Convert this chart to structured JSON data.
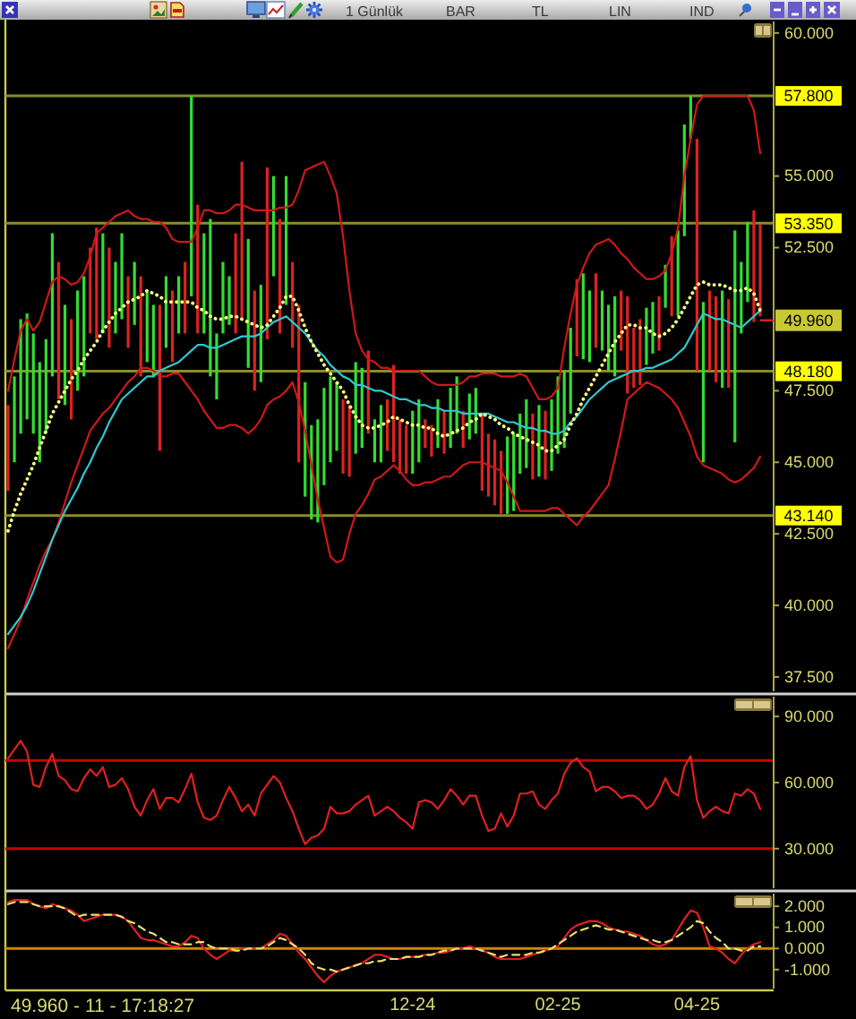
{
  "chart_data": [
    {
      "type": "bar",
      "tick_labels": "y",
      "ylim": [
        37,
        60.4
      ],
      "yticks": [
        {
          "value": 37.5,
          "label": "37.500"
        },
        {
          "value": 40,
          "label": "40.000"
        },
        {
          "value": 42.5,
          "label": "42.500"
        },
        {
          "value": 45,
          "label": "45.000"
        },
        {
          "value": 47.5,
          "label": "47.500"
        },
        {
          "value": 52.5,
          "label": "52.500"
        },
        {
          "value": 55,
          "label": "55.000"
        },
        {
          "value": 60,
          "label": "60.000"
        }
      ],
      "categories": [
        null,
        null,
        null,
        null,
        null,
        null,
        null,
        null,
        null,
        null,
        null,
        null,
        null,
        null,
        null,
        null,
        null,
        null,
        null,
        null,
        null,
        null,
        null,
        null,
        null,
        null,
        null,
        null,
        null,
        null,
        null,
        null,
        null,
        null,
        null,
        null,
        null,
        null,
        null,
        null,
        null,
        null,
        null,
        null,
        null,
        null,
        null,
        null,
        null,
        null,
        null,
        null,
        null,
        null,
        null,
        null,
        null,
        null,
        null,
        null,
        null,
        null,
        null,
        null,
        null,
        null,
        null,
        null,
        null,
        null,
        null,
        null,
        null,
        null,
        null,
        null,
        null,
        null,
        null,
        null,
        null,
        null,
        null,
        null,
        null,
        null,
        null,
        null,
        null,
        null,
        null,
        null,
        null,
        null,
        null,
        null,
        null,
        null,
        null,
        null,
        null,
        null,
        null,
        null,
        null,
        null,
        null,
        null,
        null,
        null,
        null,
        null,
        null,
        null,
        null,
        null,
        null,
        null,
        null,
        null
      ],
      "series": [
        {
          "base": [
            44.0,
            45.0,
            46.0,
            46.5,
            46.0,
            45.0,
            46.0,
            48.0,
            47.2,
            47.0,
            46.5,
            47.5,
            48.0,
            49.5,
            49.3,
            49.5,
            49.0,
            49.5,
            50.0,
            49.0,
            49.8,
            48.0,
            48.5,
            48.0,
            45.4,
            49.0,
            48.5,
            49.5,
            49.5,
            50.8,
            49.5,
            49.5,
            48.0,
            47.2,
            49.5,
            49.8,
            49.5,
            50.0,
            48.3,
            47.5,
            47.8,
            49.3,
            51.5,
            49.5,
            50.5,
            49.0,
            45.0,
            43.8,
            43.0,
            42.9,
            44.2,
            45.0,
            45.4,
            44.6,
            44.5,
            45.3,
            45.5,
            46.0,
            45.0,
            45.0,
            45.4,
            45.0,
            44.6,
            44.6,
            44.6,
            45.0,
            45.5,
            45.2,
            45.5,
            45.3,
            45.5,
            46.0,
            45.5,
            45.8,
            46.0,
            44.0,
            43.8,
            43.5,
            43.2,
            43.2,
            43.3,
            44.6,
            44.8,
            44.4,
            44.5,
            44.4,
            44.7,
            45.3,
            45.5,
            46.7,
            48.7,
            48.6,
            48.5,
            49.0,
            48.9,
            48.2,
            48.0,
            48.9,
            47.4,
            47.6,
            47.7,
            48.4,
            48.8,
            48.9,
            50.4,
            50.1,
            50.1,
            52.9,
            56.3,
            48.2,
            45.0,
            48.2,
            47.8,
            47.6,
            47.6,
            45.7,
            49.5,
            50.6,
            49.9,
            50.1
          ],
          "values": [
            3.0,
            3.0,
            4.0,
            3.7,
            3.5,
            3.5,
            3.3,
            5.0,
            4.8,
            3.5,
            3.5,
            3.5,
            3.5,
            3.0,
            3.9,
            3.5,
            3.5,
            2.5,
            3.0,
            2.5,
            2.2,
            3.5,
            2.5,
            2.5,
            5.1,
            2.5,
            2.5,
            2.0,
            2.5,
            7.0,
            4.5,
            3.5,
            5.5,
            2.3,
            2.5,
            1.7,
            3.5,
            5.5,
            4.5,
            3.5,
            3.4,
            6.0,
            3.5,
            4.0,
            4.5,
            3.0,
            5.5,
            4.0,
            3.3,
            3.6,
            3.4,
            3.0,
            2.4,
            2.6,
            2.5,
            3.2,
            2.8,
            2.9,
            1.5,
            2.0,
            1.8,
            3.4,
            1.9,
            1.7,
            2.2,
            2.2,
            1.0,
            1.1,
            1.7,
            1.5,
            2.1,
            2.0,
            1.3,
            1.6,
            1.6,
            2.7,
            2.2,
            2.3,
            2.2,
            2.7,
            2.7,
            2.1,
            2.4,
            2.3,
            2.5,
            2.4,
            2.5,
            2.7,
            2.7,
            3.0,
            2.7,
            3.0,
            2.5,
            2.6,
            2.1,
            2.3,
            2.8,
            2.1,
            3.4,
            2.1,
            2.3,
            2.0,
            1.8,
            1.9,
            1.5,
            2.8,
            3.0,
            3.9,
            1.5,
            8.1,
            5.6,
            2.8,
            3.0,
            3.4,
            3.1,
            7.4,
            2.5,
            2.8,
            3.9,
            3.2
          ],
          "colors": [
            "#dd2222",
            "#33dd33",
            "#33dd33",
            "#33dd33",
            "#33dd33",
            "#33dd33",
            "#33dd33",
            "#33dd33",
            "#dd2222",
            "#33dd33",
            "#dd2222",
            "#33dd33",
            "#33dd33",
            "#dd2222",
            "#dd2222",
            "#33dd33",
            "#dd2222",
            "#33dd33",
            "#33dd33",
            "#dd2222",
            "#33dd33",
            "#dd2222",
            "#33dd33",
            "#33dd33",
            "#dd2222",
            "#33dd33",
            "#dd2222",
            "#33dd33",
            "#dd2222",
            "#33dd33",
            "#dd2222",
            "#33dd33",
            "#33dd33",
            "#33dd33",
            "#33dd33",
            "#33dd33",
            "#dd2222",
            "#dd2222",
            "#33dd33",
            "#dd2222",
            "#33dd33",
            "#dd2222",
            "#33dd33",
            "#dd2222",
            "#33dd33",
            "#dd2222",
            "#dd2222",
            "#33dd33",
            "#33dd33",
            "#33dd33",
            "#33dd33",
            "#33dd33",
            "#33dd33",
            "#dd2222",
            "#dd2222",
            "#33dd33",
            "#33dd33",
            "#dd2222",
            "#33dd33",
            "#33dd33",
            "#dd2222",
            "#dd2222",
            "#dd2222",
            "#dd2222",
            "#33dd33",
            "#33dd33",
            "#dd2222",
            "#dd2222",
            "#33dd33",
            "#dd2222",
            "#33dd33",
            "#33dd33",
            "#dd2222",
            "#33dd33",
            "#33dd33",
            "#dd2222",
            "#dd2222",
            "#dd2222",
            "#dd2222",
            "#33dd33",
            "#33dd33",
            "#33dd33",
            "#33dd33",
            "#dd2222",
            "#33dd33",
            "#dd2222",
            "#33dd33",
            "#33dd33",
            "#33dd33",
            "#33dd33",
            "#dd2222",
            "#33dd33",
            "#33dd33",
            "#dd2222",
            "#33dd33",
            "#33dd33",
            "#33dd33",
            "#dd2222",
            "#dd2222",
            "#dd2222",
            "#dd2222",
            "#33dd33",
            "#33dd33",
            "#dd2222",
            "#33dd33",
            "#dd2222",
            "#33dd33",
            "#33dd33",
            "#33dd33",
            "#dd2222",
            "#33dd33",
            "#dd2222",
            "#dd2222",
            "#33dd33",
            "#dd2222",
            "#33dd33",
            "#33dd33",
            "#33dd33",
            "#dd2222",
            "#dd2222"
          ]
        },
        {
          "type": "line",
          "color": "#d01818",
          "values": [
            47.5,
            48.6,
            49.6,
            50.0,
            49.6,
            49.9,
            50.6,
            51.3,
            51.5,
            51.4,
            51.2,
            51.3,
            51.6,
            52.2,
            53.0,
            53.2,
            53.4,
            53.6,
            53.7,
            53.8,
            53.6,
            53.5,
            53.5,
            53.4,
            53.4,
            53.2,
            52.8,
            52.7,
            52.7,
            52.7,
            53.2,
            53.8,
            53.8,
            53.7,
            53.7,
            53.8,
            54.0,
            54.0,
            53.9,
            53.8,
            53.8,
            53.8,
            53.8,
            53.9,
            53.9,
            54.0,
            54.5,
            55.2,
            55.3,
            55.4,
            55.5,
            55.0,
            54.4,
            52.9,
            51.0,
            49.5,
            48.9,
            48.6,
            48.5,
            48.3,
            48.3,
            48.2,
            48.2,
            48.2,
            48.2,
            48.2,
            48.0,
            47.8,
            47.7,
            47.7,
            47.7,
            47.7,
            47.8,
            48.0,
            48.0,
            48.1,
            48.1,
            48.1,
            48.0,
            48.0,
            48.0,
            48.1,
            48.0,
            47.6,
            47.2,
            47.2,
            47.3,
            47.6,
            49.0,
            50.2,
            51.2,
            51.8,
            52.3,
            52.6,
            52.7,
            52.8,
            52.6,
            52.3,
            52.1,
            51.8,
            51.6,
            51.4,
            51.4,
            51.5,
            51.7,
            52.3,
            53.2,
            55.0,
            56.3,
            57.5,
            57.8,
            57.8,
            57.8,
            57.8,
            57.8,
            57.8,
            57.8,
            57.8,
            57.3,
            55.8
          ]
        },
        {
          "type": "line",
          "color": "#d01818",
          "values": [
            38.5,
            39.0,
            39.5,
            40.2,
            40.8,
            41.4,
            41.9,
            42.3,
            42.9,
            43.6,
            44.3,
            44.9,
            45.5,
            46.1,
            46.4,
            46.7,
            46.9,
            47.2,
            47.5,
            47.8,
            48.0,
            48.3,
            48.3,
            48.2,
            48.0,
            48.0,
            48.1,
            48.1,
            47.8,
            47.5,
            47.2,
            46.8,
            46.5,
            46.2,
            46.2,
            46.3,
            46.3,
            46.2,
            46.0,
            46.2,
            46.5,
            47.0,
            47.2,
            47.3,
            47.5,
            47.8,
            47.1,
            46.1,
            44.9,
            43.7,
            42.7,
            41.7,
            41.5,
            41.6,
            42.5,
            43.2,
            43.5,
            43.9,
            44.4,
            44.5,
            44.7,
            44.9,
            44.7,
            44.4,
            44.2,
            44.2,
            44.3,
            44.3,
            44.4,
            44.5,
            44.5,
            44.7,
            44.9,
            45.0,
            45.0,
            45.0,
            44.9,
            44.8,
            44.7,
            44.3,
            43.8,
            43.3,
            43.3,
            43.3,
            43.3,
            43.3,
            43.4,
            43.4,
            43.2,
            43.0,
            42.8,
            43.1,
            43.3,
            43.6,
            43.9,
            44.2,
            45.1,
            46.1,
            47.2,
            47.4,
            47.6,
            47.8,
            47.7,
            47.6,
            47.4,
            47.2,
            46.9,
            46.4,
            45.9,
            45.2,
            44.9,
            44.8,
            44.7,
            44.6,
            44.4,
            44.3,
            44.4,
            44.6,
            44.8,
            45.2
          ]
        },
        {
          "type": "line",
          "color": "#30c8d0",
          "values": [
            39.0,
            39.3,
            39.6,
            40.0,
            40.5,
            41.1,
            41.7,
            42.3,
            42.8,
            43.3,
            43.7,
            44.1,
            44.6,
            45.0,
            45.5,
            45.9,
            46.4,
            46.8,
            47.2,
            47.4,
            47.6,
            47.8,
            48.0,
            48.0,
            48.2,
            48.3,
            48.4,
            48.5,
            48.7,
            48.9,
            49.1,
            49.1,
            49.0,
            49.0,
            49.1,
            49.2,
            49.3,
            49.4,
            49.4,
            49.4,
            49.5,
            49.7,
            49.9,
            50.0,
            50.1,
            49.9,
            49.7,
            49.5,
            49.2,
            48.9,
            48.7,
            48.4,
            48.2,
            48.0,
            47.9,
            47.7,
            47.7,
            47.6,
            47.5,
            47.5,
            47.4,
            47.3,
            47.2,
            47.2,
            47.1,
            47.0,
            47.0,
            46.9,
            46.9,
            46.8,
            46.8,
            46.8,
            46.7,
            46.7,
            46.7,
            46.7,
            46.7,
            46.6,
            46.5,
            46.4,
            46.4,
            46.3,
            46.2,
            46.2,
            46.1,
            46.1,
            46.0,
            46.0,
            46.1,
            46.4,
            46.6,
            46.9,
            47.2,
            47.4,
            47.6,
            47.8,
            47.9,
            48.0,
            48.1,
            48.2,
            48.2,
            48.3,
            48.3,
            48.4,
            48.5,
            48.6,
            48.8,
            49.0,
            49.4,
            49.8,
            50.2,
            50.1,
            50.0,
            50.0,
            49.9,
            49.8,
            49.7,
            49.9,
            50.1,
            50.3
          ]
        },
        {
          "type": "line",
          "color": "#ffff80",
          "line_style": "dotted",
          "values": [
            42.6,
            43.3,
            43.9,
            44.4,
            44.9,
            45.5,
            46.1,
            46.7,
            47.1,
            47.5,
            47.9,
            48.2,
            48.6,
            48.9,
            49.2,
            49.6,
            49.9,
            50.2,
            50.4,
            50.6,
            50.7,
            50.8,
            51.0,
            50.9,
            50.8,
            50.6,
            50.6,
            50.6,
            50.6,
            50.6,
            50.4,
            50.3,
            50.1,
            50.0,
            50.0,
            50.1,
            50.1,
            50.0,
            49.9,
            49.8,
            49.7,
            49.8,
            50.1,
            50.4,
            50.8,
            50.8,
            50.3,
            49.7,
            49.2,
            48.8,
            48.4,
            48.1,
            47.8,
            47.5,
            47.0,
            46.6,
            46.3,
            46.2,
            46.2,
            46.3,
            46.4,
            46.6,
            46.5,
            46.4,
            46.3,
            46.3,
            46.2,
            46.2,
            46.0,
            45.9,
            46.0,
            46.1,
            46.2,
            46.4,
            46.5,
            46.7,
            46.6,
            46.5,
            46.3,
            46.2,
            46.0,
            45.9,
            45.8,
            45.7,
            45.6,
            45.4,
            45.4,
            45.6,
            45.8,
            46.3,
            46.7,
            47.2,
            47.6,
            48.0,
            48.4,
            48.8,
            49.2,
            49.5,
            49.8,
            49.8,
            49.7,
            49.7,
            49.5,
            49.4,
            49.5,
            49.7,
            50.0,
            50.4,
            50.8,
            51.2,
            51.3,
            51.2,
            51.2,
            51.2,
            51.1,
            51.0,
            51.0,
            51.1,
            50.9,
            50.3
          ]
        }
      ],
      "ref_lines": [
        {
          "axis": "y",
          "value": 57.8,
          "label": "57.800",
          "color": "#8c8c28"
        },
        {
          "axis": "y",
          "value": 53.35,
          "label": "53.350",
          "color": "#8c8c28"
        },
        {
          "axis": "y",
          "value": 48.18,
          "label": "48.180",
          "color": "#8c8c28"
        },
        {
          "axis": "y",
          "value": 43.14,
          "label": "43.140",
          "color": "#8c8c28"
        }
      ],
      "annotations": [
        "1 Günlük",
        "BAR",
        "TL",
        "LIN",
        "IND",
        {
          "text": "49.960",
          "y": 49.96
        }
      ]
    },
    {
      "type": "line",
      "tick_labels": "y",
      "ylim": [
        12,
        99
      ],
      "yticks": [
        {
          "value": 30,
          "label": "30.000"
        },
        {
          "value": 60,
          "label": "60.000"
        },
        {
          "value": 90,
          "label": "90.000"
        }
      ],
      "categories": [
        null,
        null,
        null,
        null,
        null,
        null,
        null,
        null,
        null,
        null,
        null,
        null,
        null,
        null,
        null,
        null,
        null,
        null,
        null,
        null,
        null,
        null,
        null,
        null,
        null,
        null,
        null,
        null,
        null,
        null,
        null,
        null,
        null,
        null,
        null,
        null,
        null,
        null,
        null,
        null,
        null,
        null,
        null,
        null,
        null,
        null,
        null,
        null,
        null,
        null,
        null,
        null,
        null,
        null,
        null,
        null,
        null,
        null,
        null,
        null,
        null,
        null,
        null,
        null,
        null,
        null,
        null,
        null,
        null,
        null,
        null,
        null,
        null,
        null,
        null,
        null,
        null,
        null,
        null,
        null,
        null,
        null,
        null,
        null,
        null,
        null,
        null,
        null,
        null,
        null,
        null,
        null,
        null,
        null,
        null,
        null,
        null,
        null,
        null,
        null,
        null,
        null,
        null,
        null,
        null,
        null,
        null,
        null,
        null,
        null,
        null,
        null,
        null,
        null,
        null,
        null,
        null,
        null,
        null,
        null
      ],
      "series": [
        {
          "color": "#e02020",
          "values": [
            71,
            75,
            79,
            74,
            59,
            58,
            67,
            73,
            63,
            61,
            57,
            56,
            62,
            66,
            63,
            67,
            58,
            59,
            62,
            57,
            49,
            45,
            52,
            57,
            48,
            53,
            53,
            51,
            57,
            64,
            51,
            44,
            43,
            45,
            52,
            58,
            53,
            47,
            50,
            45,
            55,
            59,
            63,
            60,
            53,
            47,
            39,
            32,
            35,
            36,
            39,
            49,
            46,
            46,
            47,
            50,
            52,
            54,
            45,
            47,
            49,
            47,
            44,
            42,
            39,
            51,
            52,
            51,
            48,
            52,
            57,
            54,
            50,
            54,
            54,
            45,
            38,
            39,
            46,
            40,
            45,
            55,
            55,
            56,
            50,
            48,
            52,
            55,
            64,
            69,
            71,
            67,
            65,
            56,
            58,
            58,
            56,
            53,
            54,
            54,
            52,
            48,
            50,
            55,
            62,
            56,
            54,
            67,
            72,
            52,
            44,
            47,
            49,
            47,
            46,
            55,
            54,
            57,
            55,
            48
          ]
        }
      ],
      "ref_lines": [
        {
          "axis": "y",
          "value": 70,
          "color": "#cc0000"
        },
        {
          "axis": "y",
          "value": 30,
          "color": "#cc0000"
        }
      ]
    },
    {
      "type": "line",
      "ylim": [
        -1.9,
        2.6
      ],
      "yticks": [
        {
          "value": -1,
          "label": "-1.000"
        },
        {
          "value": 0,
          "label": "0.000"
        },
        {
          "value": 1,
          "label": "1.000"
        },
        {
          "value": 2,
          "label": "2.000"
        }
      ],
      "categories": [
        null,
        null,
        null,
        null,
        null,
        null,
        null,
        null,
        null,
        null,
        null,
        null,
        null,
        null,
        null,
        null,
        null,
        null,
        null,
        null,
        null,
        null,
        null,
        null,
        null,
        null,
        null,
        null,
        null,
        null,
        null,
        null,
        null,
        null,
        null,
        null,
        null,
        null,
        null,
        null,
        null,
        null,
        null,
        null,
        null,
        null,
        null,
        null,
        null,
        null,
        null,
        null,
        null,
        null,
        null,
        null,
        null,
        null,
        null,
        null,
        null,
        null,
        null,
        null,
        "12-24",
        null,
        null,
        null,
        null,
        null,
        null,
        null,
        null,
        null,
        null,
        null,
        null,
        null,
        null,
        null,
        null,
        null,
        null,
        null,
        null,
        null,
        null,
        "02-25",
        null,
        null,
        null,
        null,
        null,
        null,
        null,
        null,
        null,
        null,
        null,
        null,
        null,
        null,
        null,
        null,
        null,
        null,
        null,
        null,
        null,
        "04-25",
        null,
        null,
        null,
        null,
        null,
        null,
        null,
        null,
        null,
        null
      ],
      "series": [
        {
          "color": "#e02020",
          "values": [
            2.2,
            2.3,
            2.3,
            2.3,
            2.1,
            2.0,
            1.9,
            2.1,
            2.0,
            1.9,
            1.8,
            1.6,
            1.3,
            1.4,
            1.5,
            1.6,
            1.6,
            1.6,
            1.5,
            1.3,
            0.9,
            0.5,
            0.4,
            0.4,
            0.3,
            0.2,
            0.1,
            0.1,
            0.3,
            0.6,
            0.5,
            0.0,
            -0.3,
            -0.5,
            -0.3,
            -0.1,
            -0.1,
            0.0,
            0.0,
            0.0,
            0.0,
            0.2,
            0.4,
            0.7,
            0.6,
            0.2,
            -0.2,
            -0.5,
            -0.9,
            -1.3,
            -1.6,
            -1.3,
            -1.1,
            -1.0,
            -0.9,
            -0.8,
            -0.7,
            -0.5,
            -0.3,
            -0.3,
            -0.4,
            -0.5,
            -0.5,
            -0.4,
            -0.4,
            -0.4,
            -0.3,
            -0.3,
            -0.2,
            -0.2,
            -0.1,
            0.0,
            0.0,
            0.1,
            0.0,
            -0.1,
            -0.2,
            -0.4,
            -0.5,
            -0.5,
            -0.5,
            -0.5,
            -0.4,
            -0.3,
            -0.2,
            -0.1,
            0.0,
            0.1,
            0.5,
            0.9,
            1.1,
            1.2,
            1.3,
            1.3,
            1.2,
            1.0,
            0.9,
            0.8,
            0.8,
            0.7,
            0.6,
            0.4,
            0.2,
            0.1,
            0.2,
            0.4,
            0.9,
            1.4,
            1.8,
            1.7,
            1.0,
            0.1,
            0.0,
            -0.2,
            -0.5,
            -0.7,
            -0.3,
            0.0,
            0.2,
            0.3
          ]
        },
        {
          "color": "#e8e070",
          "line_style": "dashed",
          "values": [
            2.1,
            2.2,
            2.2,
            2.2,
            2.1,
            2.0,
            2.0,
            2.0,
            2.0,
            1.9,
            1.7,
            1.5,
            1.6,
            1.6,
            1.6,
            1.6,
            1.6,
            1.6,
            1.5,
            1.3,
            1.2,
            1.0,
            0.8,
            0.7,
            0.5,
            0.3,
            0.3,
            0.2,
            0.2,
            0.2,
            0.3,
            0.3,
            0.1,
            0.0,
            0.0,
            0.0,
            -0.1,
            -0.1,
            0.0,
            0.0,
            0.0,
            0.1,
            0.3,
            0.5,
            0.4,
            0.2,
            0.0,
            -0.3,
            -0.7,
            -0.9,
            -1.0,
            -1.0,
            -1.1,
            -1.0,
            -0.9,
            -0.8,
            -0.7,
            -0.7,
            -0.6,
            -0.6,
            -0.5,
            -0.5,
            -0.5,
            -0.4,
            -0.4,
            -0.4,
            -0.3,
            -0.3,
            -0.2,
            -0.1,
            -0.1,
            0.0,
            0.0,
            0.0,
            0.0,
            -0.1,
            -0.2,
            -0.3,
            -0.4,
            -0.3,
            -0.3,
            -0.3,
            -0.3,
            -0.2,
            -0.2,
            -0.1,
            0.0,
            0.2,
            0.4,
            0.6,
            0.8,
            0.9,
            1.0,
            1.1,
            1.0,
            0.9,
            0.9,
            0.8,
            0.7,
            0.6,
            0.5,
            0.4,
            0.4,
            0.3,
            0.3,
            0.4,
            0.6,
            0.8,
            1.0,
            1.3,
            1.2,
            0.8,
            0.5,
            0.3,
            0.0,
            0.0,
            -0.1,
            -0.1,
            0.1,
            0.1
          ]
        }
      ],
      "ref_lines": [
        {
          "axis": "y",
          "value": 0,
          "color": "#c88a00"
        }
      ],
      "annotations": [
        "49.960 - 11 - 17:18:27"
      ]
    }
  ]
}
